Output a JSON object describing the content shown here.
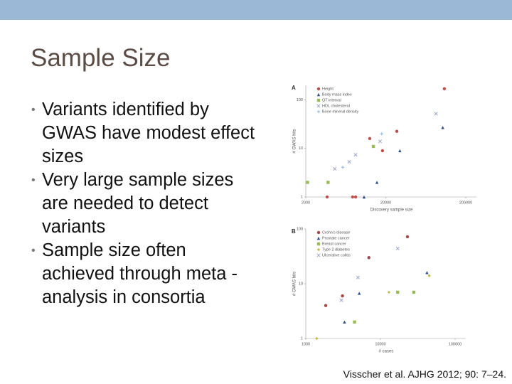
{
  "slide": {
    "title": "Sample Size",
    "bullets": [
      "Variants identified by GWAS have modest effect sizes",
      "Very large sample sizes are needed to detect variants",
      "Sample size often achieved through meta -analysis in consortia"
    ],
    "citation": "Visscher et al. AJHG 2012; 90: 7–24."
  },
  "chart_data": [
    {
      "type": "scatter",
      "panel": "A",
      "x_label": "Discovery sample size",
      "y_label": "# GWAS hits",
      "xscale": "log",
      "yscale": "log",
      "xlim": [
        2000,
        200000
      ],
      "ylim": [
        1,
        200
      ],
      "xticks": [
        2000,
        20000,
        200000
      ],
      "yticks": [
        1,
        10,
        100
      ],
      "series": [
        {
          "name": "Height",
          "color": "#c0504d",
          "marker": "circle",
          "x": [
            108000,
            27500,
            12600,
            18200,
            3700,
            7700,
            8400
          ],
          "values": [
            170,
            22.5,
            16,
            9,
            1,
            1,
            1
          ]
        },
        {
          "name": "Body mass index",
          "color": "#2f4f8f",
          "marker": "triangle",
          "x": [
            103000,
            30000,
            15500,
            10700
          ],
          "values": [
            27,
            9,
            2,
            1
          ]
        },
        {
          "name": "QT interval",
          "color": "#9bbb59",
          "marker": "square",
          "x": [
            2100,
            3800,
            14000
          ],
          "values": [
            2,
            2,
            11
          ]
        },
        {
          "name": "HDL cholesterol",
          "color": "#9aa6c8",
          "marker": "cross",
          "x": [
            85000,
            17000,
            8400,
            4600,
            7000
          ],
          "values": [
            52,
            14,
            7.4,
            3.8,
            5.3
          ]
        },
        {
          "name": "Bone mineral density",
          "color": "#8db3e2",
          "marker": "plus",
          "x": [
            17800,
            5800
          ],
          "values": [
            20,
            4.1
          ]
        }
      ]
    },
    {
      "type": "scatter",
      "panel": "B",
      "x_label": "# cases",
      "y_label": "# GWAS hits",
      "xscale": "log",
      "yscale": "log",
      "xlim": [
        1000,
        100000
      ],
      "ylim": [
        1,
        100
      ],
      "xticks": [
        1000,
        10000,
        100000
      ],
      "yticks": [
        1,
        10,
        100
      ],
      "series": [
        {
          "name": "Crohn's disease",
          "color": "#a04848",
          "marker": "circle",
          "x": [
            23000,
            7000,
            1850,
            3100
          ],
          "values": [
            72,
            30,
            4,
            6
          ]
        },
        {
          "name": "Prostate cancer",
          "color": "#2f4f8f",
          "marker": "triangle",
          "x": [
            42000,
            5200,
            3300
          ],
          "values": [
            16,
            6.7,
            2
          ]
        },
        {
          "name": "Breast cancer",
          "color": "#9bbb59",
          "marker": "square",
          "x": [
            28000,
            17000,
            4500
          ],
          "values": [
            7,
            7,
            2
          ]
        },
        {
          "name": "Type 2 diabetes",
          "color": "#c4bd4a",
          "marker": "diamond",
          "x": [
            45000,
            13000,
            1400
          ],
          "values": [
            14,
            7,
            1
          ]
        },
        {
          "name": "Ulcerative colitis",
          "color": "#9aa6c8",
          "marker": "cross",
          "x": [
            17000,
            5000,
            3000
          ],
          "values": [
            44,
            13,
            5
          ]
        }
      ]
    }
  ]
}
